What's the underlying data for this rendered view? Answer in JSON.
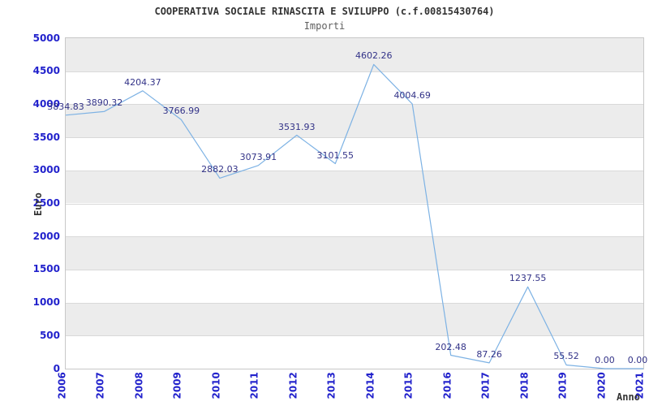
{
  "header": {
    "title": "COOPERATIVA SOCIALE RINASCITA E SVILUPPO (c.f.00815430764)",
    "subtitle": "Importi"
  },
  "chart_data": {
    "type": "line",
    "title": "COOPERATIVA SOCIALE RINASCITA E SVILUPPO (c.f.00815430764)",
    "subtitle": "Importi",
    "xlabel": "Anno",
    "ylabel": "Euro",
    "x": [
      "2006",
      "2007",
      "2008",
      "2009",
      "2010",
      "2011",
      "2012",
      "2013",
      "2014",
      "2015",
      "2016",
      "2017",
      "2018",
      "2019",
      "2020",
      "2021"
    ],
    "values": [
      3834.83,
      3890.32,
      4204.37,
      3766.99,
      2882.03,
      3073.91,
      3531.93,
      3101.55,
      4602.26,
      4004.69,
      202.48,
      87.26,
      1237.55,
      55.52,
      0.0,
      0.0
    ],
    "point_labels": [
      "3834.83",
      "3890.32",
      "4204.37",
      "3766.99",
      "2882.03",
      "3073.91",
      "3531.93",
      "3101.55",
      "4602.26",
      "4004.69",
      "202.48",
      "87.26",
      "1237.55",
      "55.52",
      "0.00",
      "0.00"
    ],
    "ylim": [
      0,
      5000
    ],
    "ytick_step": 500,
    "ytick_labels": [
      "0",
      "500",
      "1000",
      "1500",
      "2000",
      "2500",
      "3000",
      "3500",
      "4000",
      "4500",
      "5000"
    ],
    "grid": "alternating-horizontal-bands",
    "legend": "none",
    "colors": {
      "line": "#7db2e4",
      "band_gray": "#ececec",
      "band_white": "#ffffff",
      "gridline": "#d9d9d9",
      "plot_border": "#c8c8c8",
      "axis_tick_text": "#2222cc",
      "point_label_text": "#333388",
      "axis_title_text": "#333333",
      "title_text": "#333333",
      "subtitle_text": "#606060"
    }
  }
}
